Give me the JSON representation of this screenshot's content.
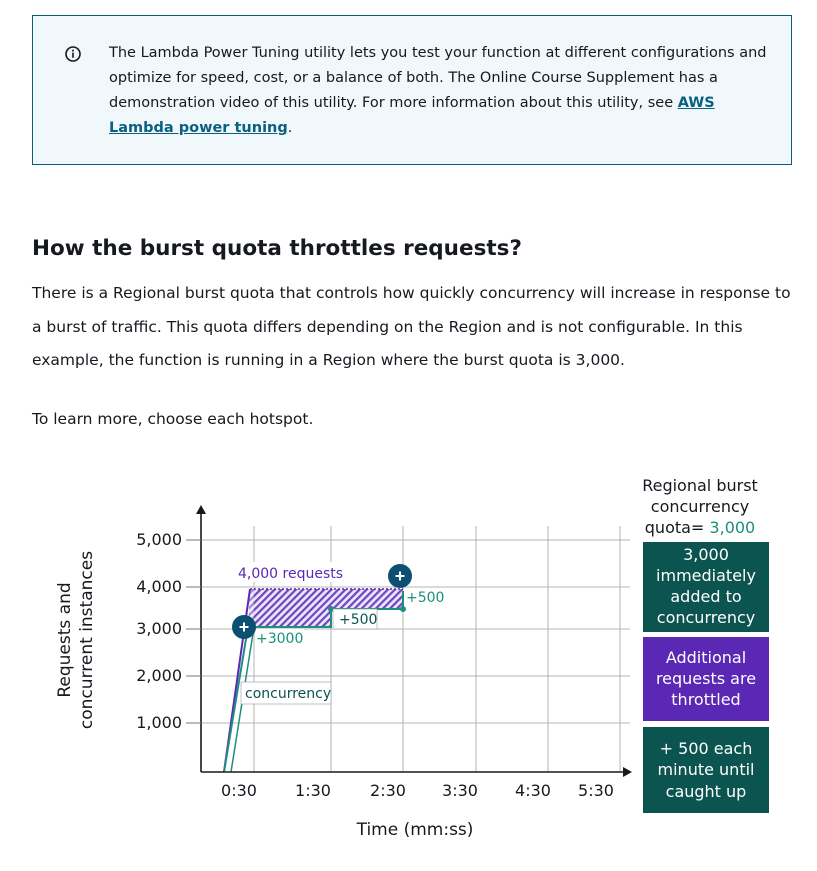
{
  "info": {
    "text": "The Lambda Power Tuning utility lets you test your function at different configurations and optimize for speed, cost, or a balance of both. The Online Course Supplement has a demonstration video of this utility. For more information about this utility, see ",
    "link_text": "AWS Lambda power tuning",
    "suffix": "."
  },
  "heading": "How the burst quota throttles requests?",
  "paragraph": "There is a Regional burst quota that controls how quickly concurrency will increase in response to a burst of traffic. This quota differs depending on the Region and is not configurable. In this example, the function is running in a Region where the burst quota is 3,000.",
  "instruction": "To learn more, choose each hotspot.",
  "colors": {
    "teal": "#0c5450",
    "teal_line": "#1d8f7d",
    "purple": "#5a28b4",
    "hotspot": "#0b5070"
  },
  "chart_data": {
    "type": "line",
    "title": "",
    "xlabel": "Time (mm:ss)",
    "ylabel_line1": "Requests and",
    "ylabel_line2": "concurrent instances",
    "x_ticks": [
      "0:30",
      "1:30",
      "2:30",
      "3:30",
      "4:30",
      "5:30"
    ],
    "y_ticks": [
      "5,000",
      "4,000",
      "3,000",
      "2,000",
      "1,000"
    ],
    "ylim": [
      0,
      5000
    ],
    "series": [
      {
        "name": "4,000 requests",
        "x": [
          "0:00",
          "0:30",
          "3:30"
        ],
        "y": [
          0,
          4000,
          4000
        ]
      },
      {
        "name": "concurrency",
        "x": [
          "0:00",
          "0:30",
          "1:30",
          "1:30",
          "2:30",
          "2:30"
        ],
        "y": [
          0,
          3000,
          3000,
          3500,
          3500,
          4000
        ]
      }
    ],
    "annotations": {
      "requests": "4,000 requests",
      "concurrency": "concurrency",
      "plus3000": "+3000",
      "plus500a": "+500",
      "plus500b": "+500"
    },
    "legend": {
      "header_line1": "Regional burst",
      "header_line2": "concurrency",
      "header_prefix": "quota= ",
      "header_value": "3,000",
      "box1": [
        "3,000",
        "immediately",
        "added to",
        "concurrency"
      ],
      "box2": [
        "Additional",
        "requests are",
        "throttled"
      ],
      "box3": [
        "+ 500 each",
        "minute until",
        "caught up"
      ]
    }
  }
}
